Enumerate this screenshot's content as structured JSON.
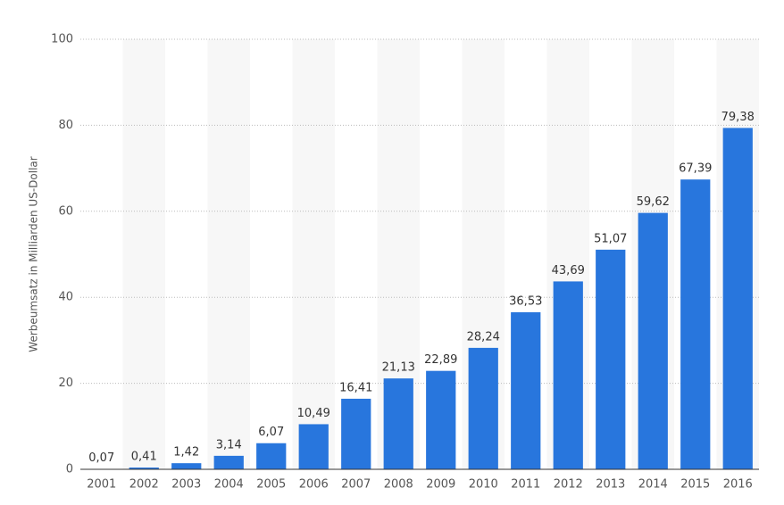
{
  "chart_data": {
    "type": "bar",
    "y_axis_label": "Werbeumsatz in Milliarden US-Dollar",
    "categories": [
      "2001",
      "2002",
      "2003",
      "2004",
      "2005",
      "2006",
      "2007",
      "2008",
      "2009",
      "2010",
      "2011",
      "2012",
      "2013",
      "2014",
      "2015",
      "2016"
    ],
    "values": [
      0.07,
      0.41,
      1.42,
      3.14,
      6.07,
      10.49,
      16.41,
      21.13,
      22.89,
      28.24,
      36.53,
      43.69,
      51.07,
      59.62,
      67.39,
      79.38
    ],
    "value_labels": [
      "0,07",
      "0,41",
      "1,42",
      "3,14",
      "6,07",
      "10,49",
      "16,41",
      "21,13",
      "22,89",
      "28,24",
      "36,53",
      "43,69",
      "51,07",
      "59,62",
      "67,39",
      "79,38"
    ],
    "color": "#2876dd",
    "ylim": [
      0,
      100
    ],
    "yticks": [
      0,
      20,
      40,
      60,
      80,
      100
    ],
    "grid": true
  }
}
